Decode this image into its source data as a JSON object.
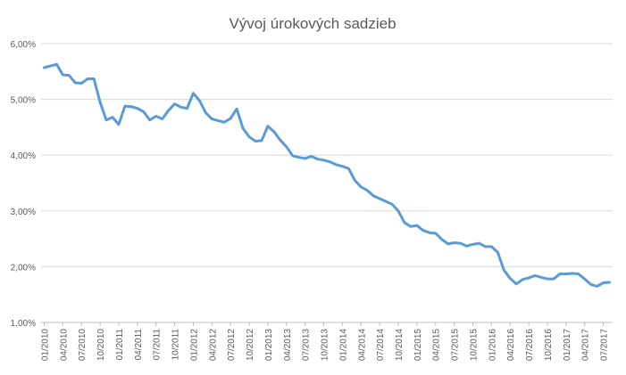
{
  "chart_data": {
    "type": "line",
    "title": "Vývoj úrokových sadzieb",
    "xlabel": "",
    "ylabel": "",
    "ylim": [
      0.01,
      0.06
    ],
    "y_ticks": [
      "1,00%",
      "2,00%",
      "3,00%",
      "4,00%",
      "5,00%",
      "6,00%"
    ],
    "x_ticks": [
      "01/2010",
      "04/2010",
      "07/2010",
      "10/2010",
      "01/2011",
      "04/2011",
      "07/2011",
      "10/2011",
      "01/2012",
      "04/2012",
      "07/2012",
      "10/2012",
      "01/2013",
      "04/2013",
      "07/2013",
      "10/2013",
      "01/2014",
      "04/2014",
      "07/2014",
      "10/2014",
      "01/2015",
      "04/2015",
      "07/2015",
      "10/2015",
      "01/2016",
      "04/2016",
      "07/2016",
      "10/2016",
      "01/2017",
      "04/2017",
      "07/2017"
    ],
    "grid": true,
    "legend": "none",
    "colors": {
      "line": "#5b9bd5"
    },
    "series": [
      {
        "values": [
          0.0557,
          0.056,
          0.0563,
          0.0544,
          0.0543,
          0.053,
          0.0529,
          0.0537,
          0.0537,
          0.0495,
          0.0463,
          0.0468,
          0.0455,
          0.0488,
          0.0487,
          0.0484,
          0.0478,
          0.0463,
          0.047,
          0.0465,
          0.048,
          0.0492,
          0.0486,
          0.0484,
          0.0511,
          0.0498,
          0.0476,
          0.0465,
          0.0462,
          0.0459,
          0.0466,
          0.0483,
          0.0448,
          0.0433,
          0.0425,
          0.0426,
          0.0452,
          0.0442,
          0.0427,
          0.0415,
          0.0399,
          0.0396,
          0.0394,
          0.0398,
          0.0393,
          0.0391,
          0.0388,
          0.0383,
          0.038,
          0.0376,
          0.0355,
          0.0343,
          0.0337,
          0.0327,
          0.0322,
          0.0317,
          0.0312,
          0.03,
          0.0279,
          0.0272,
          0.0274,
          0.0265,
          0.0261,
          0.026,
          0.0249,
          0.0241,
          0.0243,
          0.0242,
          0.0237,
          0.024,
          0.0242,
          0.0236,
          0.0236,
          0.0226,
          0.0194,
          0.0179,
          0.0169,
          0.0177,
          0.018,
          0.0184,
          0.0181,
          0.0178,
          0.0178,
          0.0187,
          0.0187,
          0.0188,
          0.0187,
          0.0178,
          0.0168,
          0.0165,
          0.0171,
          0.0172
        ]
      }
    ]
  }
}
